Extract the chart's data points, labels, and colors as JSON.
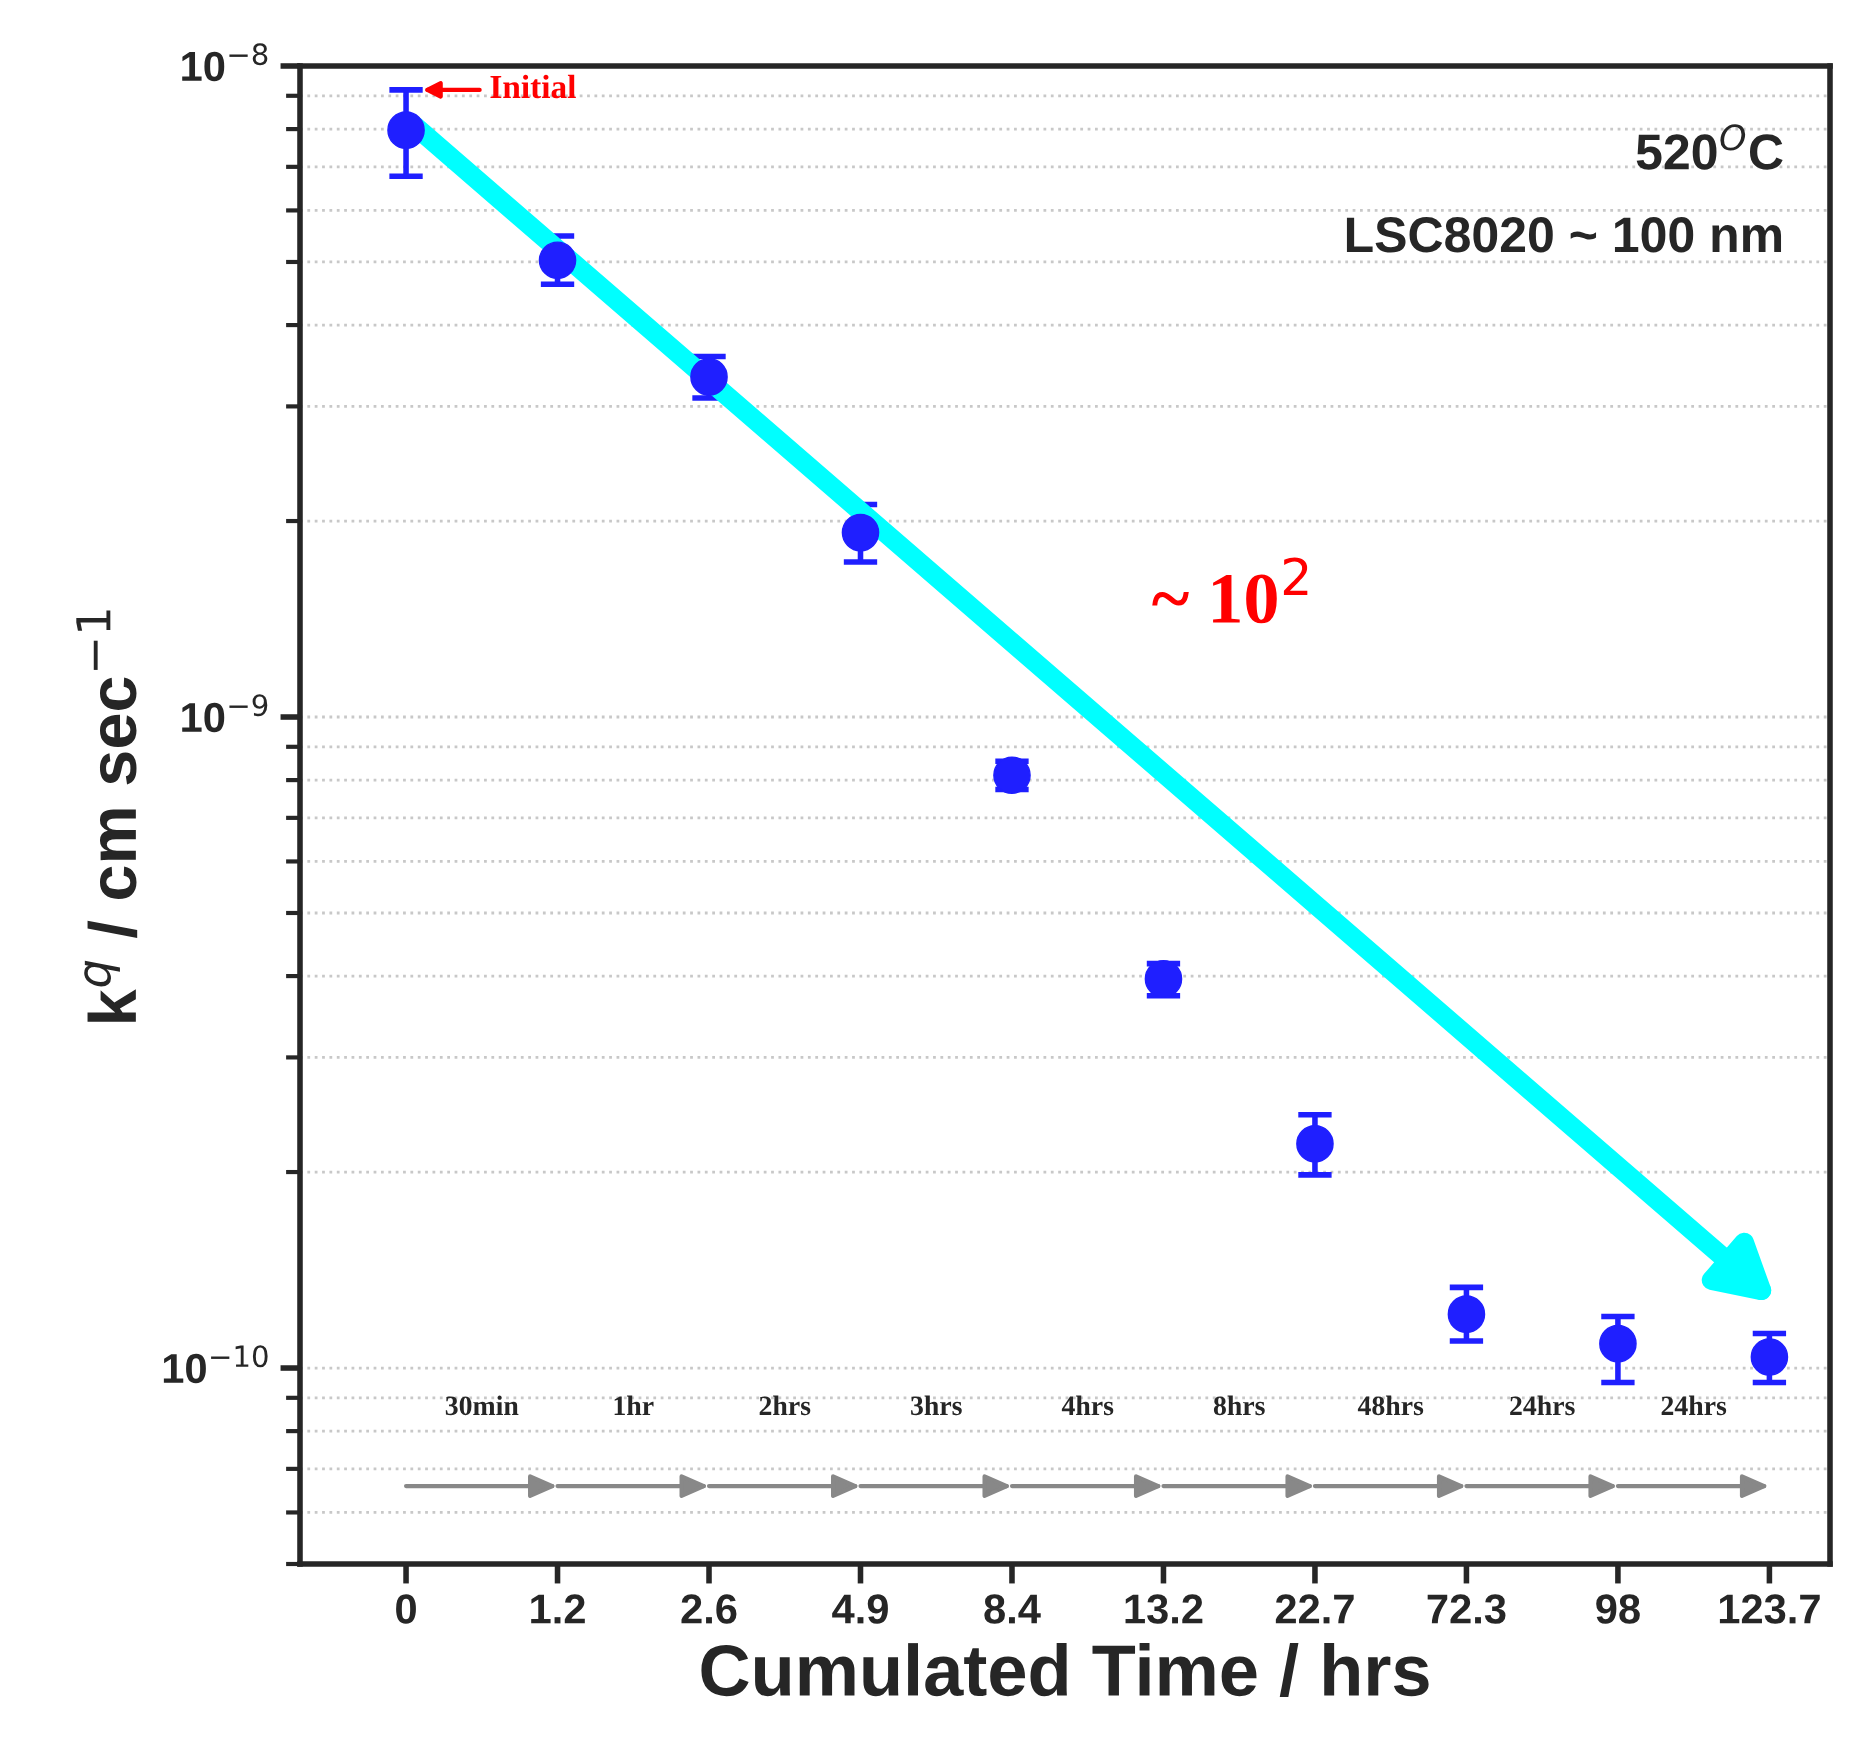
{
  "chart_data": {
    "type": "scatter",
    "xlabel": "Cumulated Time / hrs",
    "ylabel": "k$^{q}$ / cm sec$^{−1}$",
    "categories": [
      "0",
      "1.2",
      "2.6",
      "4.9",
      "8.4",
      "13.2",
      "22.7",
      "72.3",
      "98",
      "123.7"
    ],
    "log": "y",
    "ylim": [
      5e-11,
      1e-08
    ],
    "yticks": [
      {
        "value": 1e-10,
        "label": "10$^{−10}$"
      },
      {
        "value": 1e-09,
        "label": "10$^{−9}$"
      },
      {
        "value": 1e-08,
        "label": "10$^{−8}$"
      }
    ],
    "grid": "y",
    "marker": "circle",
    "series": [
      {
        "color": "#1f1fff",
        "values": [
          7.97e-09,
          5.03e-09,
          3.33e-09,
          1.92e-09,
          8.14e-10,
          3.96e-10,
          2.21e-10,
          1.21e-10,
          1.09e-10,
          1.04e-10
        ],
        "errors": [
          [
            6.77e-09,
            9.19e-09
          ],
          [
            4.62e-09,
            5.48e-09
          ],
          [
            3.09e-09,
            3.58e-09
          ],
          [
            1.73e-09,
            2.12e-09
          ],
          [
            7.74e-10,
            8.55e-10
          ],
          [
            3.73e-10,
            4.18e-10
          ],
          [
            1.98e-10,
            2.45e-10
          ],
          [
            1.1e-10,
            1.33e-10
          ],
          [
            9.5e-11,
            1.2e-10
          ],
          [
            9.5e-11,
            1.13e-10
          ]
        ]
      }
    ],
    "annotations": [
      {
        "text": "Initial",
        "x": "0",
        "y": 9.19e-09
      },
      "~ 10$^{2}$",
      "520$^{O}$C",
      "LSC8020 ~ 100 nm",
      "30min",
      "1hr",
      "2hrs",
      "3hrs",
      "4hrs",
      "8hrs",
      "48hrs",
      "24hrs",
      "24hrs"
    ]
  }
}
